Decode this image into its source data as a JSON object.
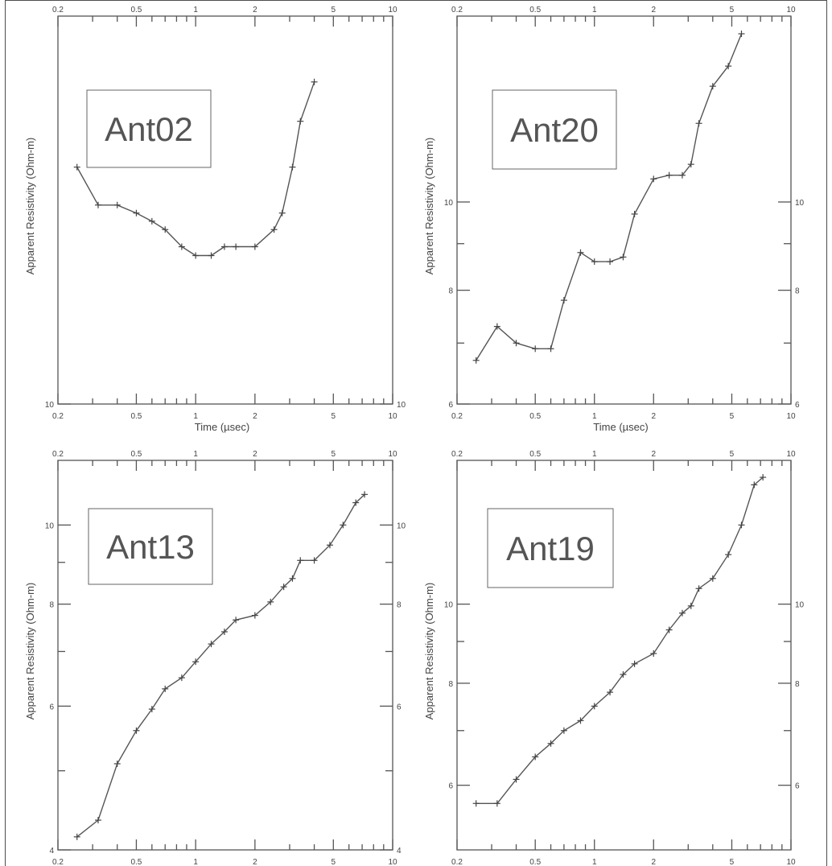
{
  "chart_data": [
    {
      "type": "line",
      "label": "Ant02",
      "xlabel": "Time (µsec)",
      "ylabel": "Apparent Resistivity (Ohm-m)",
      "xscale": "log",
      "yscale": "log",
      "xlim": [
        0.2,
        10
      ],
      "ylim": [
        10,
        25
      ],
      "xticks_major": [
        0.2,
        0.5,
        1,
        2,
        5,
        10
      ],
      "yticks_labeled": [
        10
      ],
      "yticks_minor": [],
      "x": [
        0.25,
        0.32,
        0.4,
        0.5,
        0.6,
        0.7,
        0.85,
        1.0,
        1.2,
        1.4,
        1.6,
        2.0,
        2.5,
        2.75,
        3.1,
        3.4,
        4.0
      ],
      "y": [
        17.5,
        16.0,
        16.0,
        15.7,
        15.4,
        15.1,
        14.5,
        14.2,
        14.2,
        14.5,
        14.5,
        14.5,
        15.1,
        15.7,
        17.5,
        19.5,
        21.4
      ]
    },
    {
      "type": "line",
      "label": "Ant20",
      "xlabel": "Time (µsec)",
      "ylabel": "Apparent Resistivity (Ohm-m)",
      "xscale": "log",
      "yscale": "log",
      "xlim": [
        0.2,
        10
      ],
      "ylim": [
        6,
        16
      ],
      "xticks_major": [
        0.2,
        0.5,
        1,
        2,
        5,
        10
      ],
      "yticks_labeled": [
        6,
        8,
        10
      ],
      "yticks_minor": [
        7,
        9
      ],
      "x": [
        0.25,
        0.32,
        0.4,
        0.5,
        0.6,
        0.7,
        0.85,
        1.0,
        1.2,
        1.4,
        1.6,
        2.0,
        2.4,
        2.8,
        3.1,
        3.4,
        4.0,
        4.8,
        5.6
      ],
      "y": [
        6.7,
        7.3,
        7.0,
        6.9,
        6.9,
        7.8,
        8.8,
        8.6,
        8.6,
        8.7,
        9.7,
        10.6,
        10.7,
        10.7,
        11.0,
        12.2,
        13.4,
        14.1,
        15.3
      ]
    },
    {
      "type": "line",
      "label": "Ant13",
      "xlabel": "Time (µsec)",
      "ylabel": "Apparent Resistivity (Ohm-m)",
      "xscale": "log",
      "yscale": "log",
      "xlim": [
        0.2,
        10
      ],
      "ylim": [
        4,
        12
      ],
      "xticks_major": [
        0.2,
        0.5,
        1,
        2,
        5,
        10
      ],
      "yticks_labeled": [
        4,
        6,
        8,
        10
      ],
      "yticks_minor": [
        5,
        7,
        9
      ],
      "x": [
        0.25,
        0.32,
        0.4,
        0.5,
        0.6,
        0.7,
        0.85,
        1.0,
        1.2,
        1.4,
        1.6,
        2.0,
        2.4,
        2.8,
        3.1,
        3.4,
        4.0,
        4.8,
        5.6,
        6.5,
        7.2
      ],
      "y": [
        4.15,
        4.35,
        5.1,
        5.6,
        5.95,
        6.3,
        6.5,
        6.8,
        7.15,
        7.4,
        7.65,
        7.75,
        8.05,
        8.4,
        8.6,
        9.05,
        9.05,
        9.45,
        10.0,
        10.65,
        10.9
      ]
    },
    {
      "type": "line",
      "label": "Ant19",
      "xlabel": "Time (µsec)",
      "ylabel": "Apparent Resistivity (Ohm-m)",
      "xscale": "log",
      "yscale": "log",
      "xlim": [
        0.2,
        10
      ],
      "ylim": [
        5,
        15
      ],
      "xticks_major": [
        0.2,
        0.5,
        1,
        2,
        5,
        10
      ],
      "yticks_labeled": [
        6,
        8,
        10
      ],
      "yticks_minor": [
        7,
        9
      ],
      "x": [
        0.25,
        0.32,
        0.4,
        0.5,
        0.6,
        0.7,
        0.85,
        1.0,
        1.2,
        1.4,
        1.6,
        2.0,
        2.4,
        2.8,
        3.1,
        3.4,
        4.0,
        4.8,
        5.6,
        6.5,
        7.2
      ],
      "y": [
        5.7,
        5.7,
        6.1,
        6.5,
        6.75,
        7.0,
        7.2,
        7.5,
        7.8,
        8.2,
        8.45,
        8.7,
        9.3,
        9.75,
        9.95,
        10.45,
        10.75,
        11.5,
        12.5,
        14.0,
        14.3
      ]
    }
  ]
}
